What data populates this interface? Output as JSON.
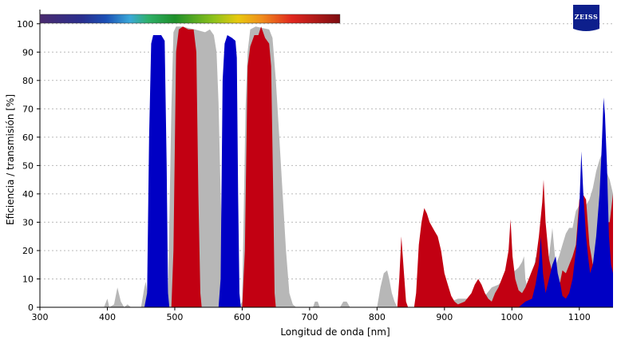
{
  "chart_data": {
    "type": "area",
    "title": "",
    "xlabel": "Longitud de onda [nm]",
    "ylabel": "Eficiencia / transmisión [%]",
    "xlim": [
      300,
      1150
    ],
    "ylim": [
      0,
      105
    ],
    "xticks": [
      300,
      400,
      500,
      600,
      700,
      800,
      900,
      1000,
      1100
    ],
    "yticks": [
      0,
      10,
      20,
      30,
      40,
      50,
      60,
      70,
      80,
      90,
      100
    ],
    "grid": "horizontal dotted",
    "legend": "none",
    "spectrum_bar": {
      "from_nm": 300,
      "to_nm": 745
    },
    "brand": "ZEISS",
    "series": [
      {
        "color": "#b7b7b7",
        "points": [
          [
            300,
            0
          ],
          [
            395,
            0
          ],
          [
            400,
            3
          ],
          [
            403,
            0
          ],
          [
            410,
            1
          ],
          [
            415,
            7
          ],
          [
            420,
            2
          ],
          [
            425,
            0
          ],
          [
            430,
            1
          ],
          [
            435,
            0
          ],
          [
            440,
            0
          ],
          [
            450,
            0
          ],
          [
            455,
            7
          ],
          [
            457,
            9
          ],
          [
            460,
            4
          ],
          [
            463,
            0
          ],
          [
            485,
            0
          ],
          [
            490,
            5
          ],
          [
            495,
            70
          ],
          [
            498,
            97
          ],
          [
            502,
            99
          ],
          [
            510,
            99
          ],
          [
            530,
            98
          ],
          [
            545,
            97
          ],
          [
            552,
            98
          ],
          [
            558,
            96
          ],
          [
            562,
            90
          ],
          [
            565,
            72
          ],
          [
            568,
            40
          ],
          [
            572,
            12
          ],
          [
            576,
            5
          ],
          [
            582,
            0
          ],
          [
            590,
            0
          ],
          [
            595,
            0
          ],
          [
            600,
            2
          ],
          [
            605,
            70
          ],
          [
            608,
            90
          ],
          [
            612,
            98
          ],
          [
            620,
            99
          ],
          [
            640,
            98
          ],
          [
            645,
            95
          ],
          [
            650,
            80
          ],
          [
            655,
            60
          ],
          [
            660,
            40
          ],
          [
            665,
            20
          ],
          [
            670,
            5
          ],
          [
            675,
            1
          ],
          [
            680,
            0
          ],
          [
            705,
            0
          ],
          [
            708,
            2
          ],
          [
            712,
            2
          ],
          [
            715,
            0
          ],
          [
            745,
            0
          ],
          [
            750,
            2
          ],
          [
            755,
            2
          ],
          [
            760,
            0
          ],
          [
            800,
            0
          ],
          [
            805,
            7
          ],
          [
            810,
            12
          ],
          [
            815,
            13
          ],
          [
            818,
            10
          ],
          [
            822,
            5
          ],
          [
            826,
            2
          ],
          [
            830,
            0
          ],
          [
            840,
            0
          ],
          [
            900,
            0
          ],
          [
            910,
            2
          ],
          [
            920,
            3
          ],
          [
            930,
            3
          ],
          [
            940,
            3
          ],
          [
            950,
            4
          ],
          [
            960,
            4
          ],
          [
            970,
            7
          ],
          [
            980,
            8
          ],
          [
            990,
            10
          ],
          [
            995,
            11
          ],
          [
            1000,
            12
          ],
          [
            1010,
            14
          ],
          [
            1015,
            16
          ],
          [
            1018,
            18
          ],
          [
            1020,
            10
          ],
          [
            1025,
            5
          ],
          [
            1030,
            8
          ],
          [
            1035,
            18
          ],
          [
            1040,
            14
          ],
          [
            1045,
            10
          ],
          [
            1050,
            16
          ],
          [
            1055,
            18
          ],
          [
            1060,
            28
          ],
          [
            1065,
            15
          ],
          [
            1070,
            18
          ],
          [
            1075,
            22
          ],
          [
            1080,
            26
          ],
          [
            1085,
            28
          ],
          [
            1090,
            28
          ],
          [
            1095,
            34
          ],
          [
            1100,
            36
          ],
          [
            1105,
            30
          ],
          [
            1110,
            36
          ],
          [
            1115,
            38
          ],
          [
            1120,
            42
          ],
          [
            1125,
            48
          ],
          [
            1130,
            52
          ],
          [
            1135,
            55
          ],
          [
            1140,
            48
          ],
          [
            1145,
            45
          ],
          [
            1150,
            40
          ]
        ]
      },
      {
        "color": "#c20012",
        "points": [
          [
            300,
            0
          ],
          [
            495,
            0
          ],
          [
            498,
            20
          ],
          [
            502,
            90
          ],
          [
            506,
            98
          ],
          [
            512,
            99
          ],
          [
            520,
            98
          ],
          [
            528,
            98
          ],
          [
            532,
            90
          ],
          [
            535,
            40
          ],
          [
            538,
            5
          ],
          [
            540,
            0
          ],
          [
            600,
            0
          ],
          [
            604,
            20
          ],
          [
            608,
            85
          ],
          [
            612,
            92
          ],
          [
            618,
            96
          ],
          [
            624,
            96
          ],
          [
            628,
            99
          ],
          [
            634,
            95
          ],
          [
            640,
            93
          ],
          [
            643,
            85
          ],
          [
            646,
            40
          ],
          [
            648,
            5
          ],
          [
            650,
            0
          ],
          [
            830,
            0
          ],
          [
            833,
            10
          ],
          [
            836,
            25
          ],
          [
            840,
            12
          ],
          [
            843,
            2
          ],
          [
            846,
            0
          ],
          [
            855,
            0
          ],
          [
            858,
            5
          ],
          [
            862,
            22
          ],
          [
            866,
            30
          ],
          [
            870,
            35
          ],
          [
            874,
            33
          ],
          [
            878,
            30
          ],
          [
            885,
            27
          ],
          [
            890,
            25
          ],
          [
            895,
            20
          ],
          [
            900,
            12
          ],
          [
            905,
            8
          ],
          [
            910,
            4
          ],
          [
            915,
            2
          ],
          [
            920,
            1
          ],
          [
            930,
            2
          ],
          [
            940,
            5
          ],
          [
            945,
            8
          ],
          [
            950,
            10
          ],
          [
            955,
            8
          ],
          [
            960,
            5
          ],
          [
            965,
            3
          ],
          [
            970,
            2
          ],
          [
            975,
            5
          ],
          [
            980,
            7
          ],
          [
            985,
            10
          ],
          [
            990,
            13
          ],
          [
            995,
            20
          ],
          [
            998,
            31
          ],
          [
            1001,
            18
          ],
          [
            1005,
            10
          ],
          [
            1010,
            6
          ],
          [
            1015,
            5
          ],
          [
            1020,
            7
          ],
          [
            1025,
            10
          ],
          [
            1030,
            13
          ],
          [
            1035,
            16
          ],
          [
            1040,
            25
          ],
          [
            1045,
            37
          ],
          [
            1047,
            45
          ],
          [
            1050,
            30
          ],
          [
            1055,
            17
          ],
          [
            1060,
            12
          ],
          [
            1065,
            8
          ],
          [
            1070,
            7
          ],
          [
            1075,
            13
          ],
          [
            1080,
            12
          ],
          [
            1085,
            15
          ],
          [
            1090,
            18
          ],
          [
            1095,
            22
          ],
          [
            1100,
            38
          ],
          [
            1105,
            40
          ],
          [
            1110,
            38
          ],
          [
            1115,
            22
          ],
          [
            1120,
            15
          ],
          [
            1125,
            20
          ],
          [
            1130,
            35
          ],
          [
            1135,
            38
          ],
          [
            1140,
            30
          ],
          [
            1145,
            30
          ],
          [
            1150,
            40
          ]
        ]
      },
      {
        "color": "#0000c4",
        "points": [
          [
            300,
            0
          ],
          [
            455,
            0
          ],
          [
            459,
            5
          ],
          [
            462,
            60
          ],
          [
            465,
            93
          ],
          [
            468,
            96
          ],
          [
            475,
            96
          ],
          [
            480,
            96
          ],
          [
            485,
            94
          ],
          [
            488,
            50
          ],
          [
            490,
            5
          ],
          [
            492,
            0
          ],
          [
            565,
            0
          ],
          [
            568,
            10
          ],
          [
            571,
            80
          ],
          [
            574,
            93
          ],
          [
            578,
            96
          ],
          [
            585,
            95
          ],
          [
            590,
            94
          ],
          [
            592,
            88
          ],
          [
            594,
            40
          ],
          [
            596,
            5
          ],
          [
            598,
            0
          ],
          [
            1000,
            0
          ],
          [
            1010,
            0
          ],
          [
            1020,
            2
          ],
          [
            1030,
            3
          ],
          [
            1035,
            8
          ],
          [
            1040,
            15
          ],
          [
            1043,
            25
          ],
          [
            1046,
            12
          ],
          [
            1050,
            5
          ],
          [
            1055,
            10
          ],
          [
            1060,
            15
          ],
          [
            1065,
            18
          ],
          [
            1068,
            12
          ],
          [
            1072,
            8
          ],
          [
            1075,
            4
          ],
          [
            1080,
            3
          ],
          [
            1085,
            5
          ],
          [
            1090,
            10
          ],
          [
            1095,
            20
          ],
          [
            1100,
            35
          ],
          [
            1103,
            55
          ],
          [
            1106,
            40
          ],
          [
            1110,
            25
          ],
          [
            1113,
            18
          ],
          [
            1116,
            12
          ],
          [
            1120,
            15
          ],
          [
            1125,
            25
          ],
          [
            1130,
            40
          ],
          [
            1133,
            55
          ],
          [
            1136,
            74
          ],
          [
            1138,
            68
          ],
          [
            1141,
            50
          ],
          [
            1144,
            25
          ],
          [
            1147,
            15
          ],
          [
            1150,
            12
          ]
        ]
      }
    ]
  }
}
